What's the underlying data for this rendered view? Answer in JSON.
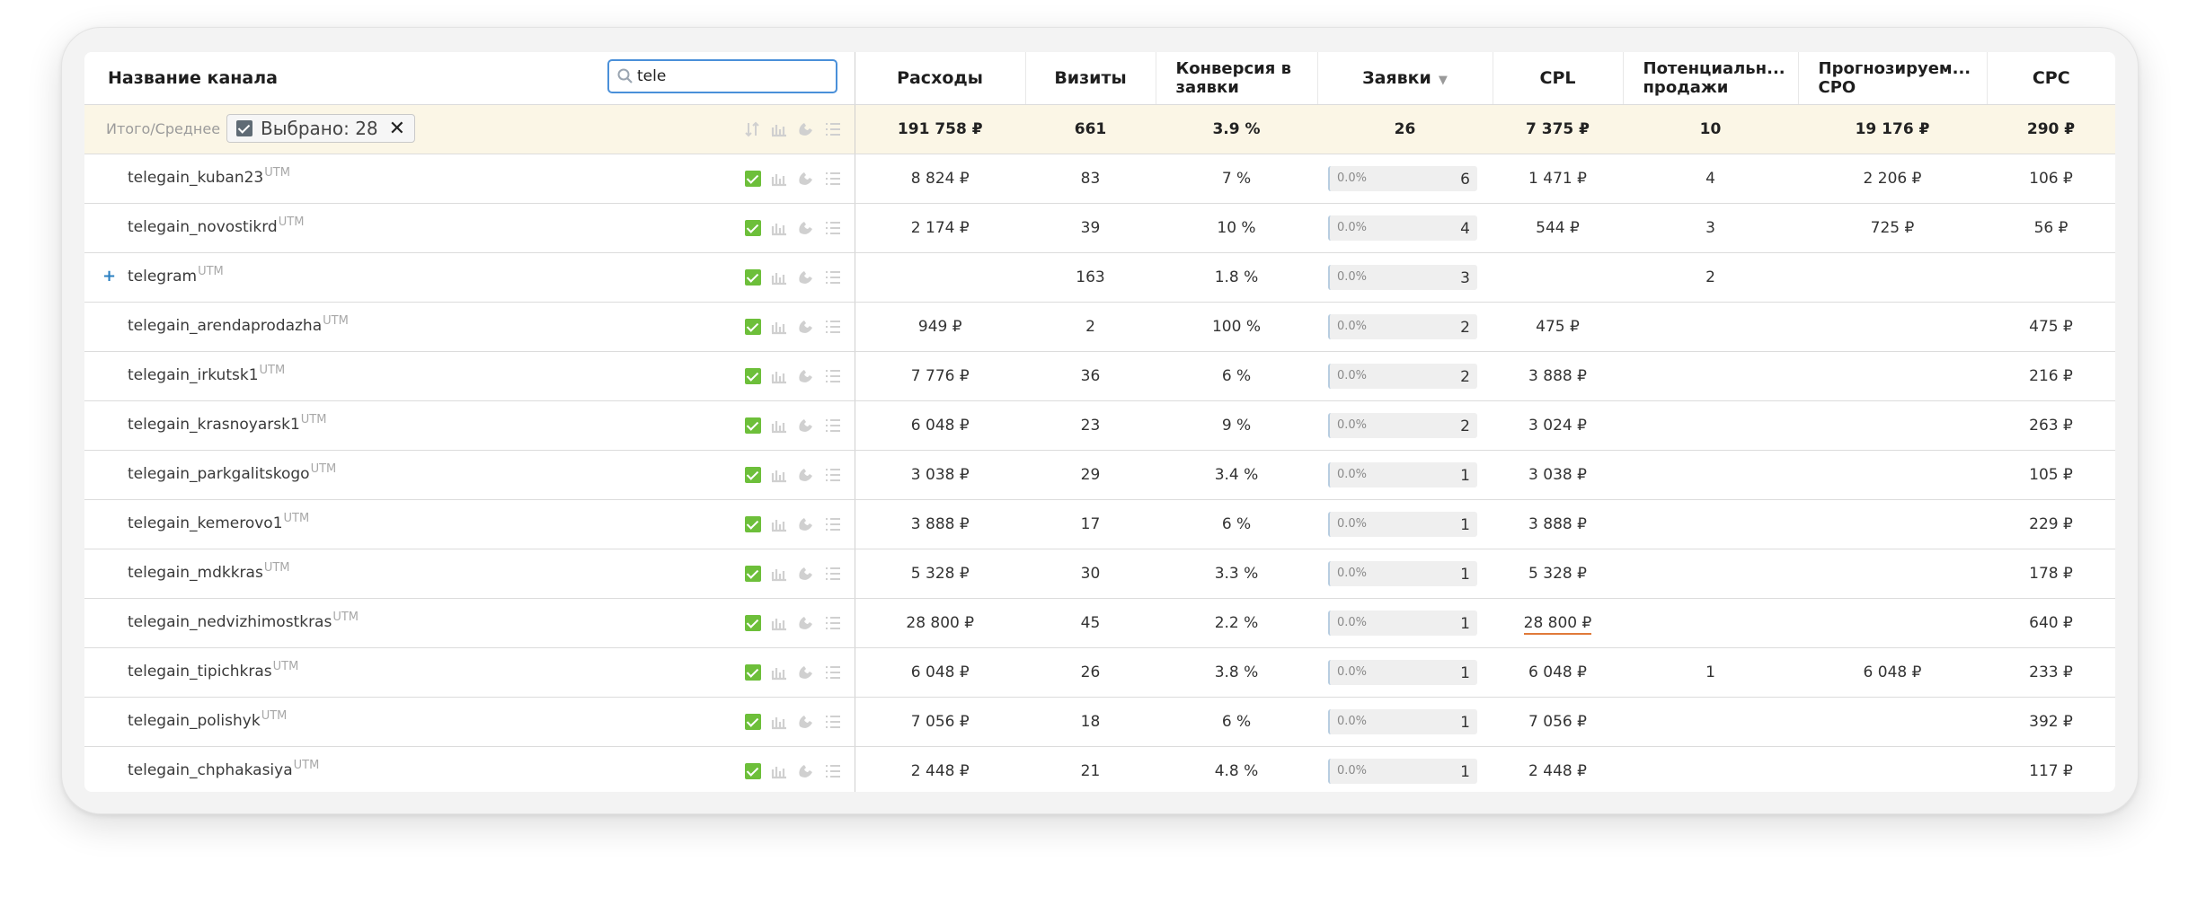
{
  "header": {
    "name_col": "Название канала",
    "search_value": "tele",
    "columns": [
      "Расходы",
      "Визиты",
      "Конверсия в заявки",
      "Заявки",
      "CPL",
      "Потенциальн... продажи",
      "Прогнозируем... CPO",
      "CPC"
    ],
    "columns_multiline": {
      "conv_line1": "Конверсия в",
      "conv_line2": "заявки",
      "pot_line1": "Потенциальн...",
      "pot_line2": "продажи",
      "cpo_line1": "Прогнозируем...",
      "cpo_line2": "CPO"
    },
    "sort_indicator": "▼"
  },
  "total": {
    "label": "Итого/Среднее",
    "selected_chip": "Выбрано: 28",
    "close_symbol": "✕",
    "expenses": "191 758 ₽",
    "visits": "661",
    "conversion": "3.9 %",
    "leads": "26",
    "cpl": "7 375 ₽",
    "potential": "10",
    "cpo": "19 176 ₽",
    "cpc": "290 ₽"
  },
  "utm_label": "UTM",
  "expand_symbol": "+",
  "leads_pct": "0.0%",
  "rows": [
    {
      "name": "telegain_kuban23",
      "expenses": "8 824 ₽",
      "visits": "83",
      "conversion": "7 %",
      "leads": "6",
      "cpl": "1 471 ₽",
      "potential": "4",
      "cpo": "2 206 ₽",
      "cpc": "106 ₽"
    },
    {
      "name": "telegain_novostikrd",
      "expenses": "2 174 ₽",
      "visits": "39",
      "conversion": "10 %",
      "leads": "4",
      "cpl": "544 ₽",
      "potential": "3",
      "cpo": "725 ₽",
      "cpc": "56 ₽"
    },
    {
      "name": "telegram",
      "expenses": "",
      "visits": "163",
      "conversion": "1.8 %",
      "leads": "3",
      "cpl": "",
      "potential": "2",
      "cpo": "",
      "cpc": ""
    },
    {
      "name": "telegain_arendaprodazha",
      "expenses": "949 ₽",
      "visits": "2",
      "conversion": "100 %",
      "leads": "2",
      "cpl": "475 ₽",
      "potential": "",
      "cpo": "",
      "cpc": "475 ₽"
    },
    {
      "name": "telegain_irkutsk1",
      "expenses": "7 776 ₽",
      "visits": "36",
      "conversion": "6 %",
      "leads": "2",
      "cpl": "3 888 ₽",
      "potential": "",
      "cpo": "",
      "cpc": "216 ₽"
    },
    {
      "name": "telegain_krasnoyarsk1",
      "expenses": "6 048 ₽",
      "visits": "23",
      "conversion": "9 %",
      "leads": "2",
      "cpl": "3 024 ₽",
      "potential": "",
      "cpo": "",
      "cpc": "263 ₽"
    },
    {
      "name": "telegain_parkgalitskogo",
      "expenses": "3 038 ₽",
      "visits": "29",
      "conversion": "3.4 %",
      "leads": "1",
      "cpl": "3 038 ₽",
      "potential": "",
      "cpo": "",
      "cpc": "105 ₽"
    },
    {
      "name": "telegain_kemerovo1",
      "expenses": "3 888 ₽",
      "visits": "17",
      "conversion": "6 %",
      "leads": "1",
      "cpl": "3 888 ₽",
      "potential": "",
      "cpo": "",
      "cpc": "229 ₽"
    },
    {
      "name": "telegain_mdkkras",
      "expenses": "5 328 ₽",
      "visits": "30",
      "conversion": "3.3 %",
      "leads": "1",
      "cpl": "5 328 ₽",
      "potential": "",
      "cpo": "",
      "cpc": "178 ₽"
    },
    {
      "name": "telegain_nedvizhimostkras",
      "expenses": "28 800 ₽",
      "visits": "45",
      "conversion": "2.2 %",
      "leads": "1",
      "cpl": "28 800 ₽",
      "potential": "",
      "cpo": "",
      "cpc": "640 ₽"
    },
    {
      "name": "telegain_tipichkras",
      "expenses": "6 048 ₽",
      "visits": "26",
      "conversion": "3.8 %",
      "leads": "1",
      "cpl": "6 048 ₽",
      "potential": "1",
      "cpo": "6 048 ₽",
      "cpc": "233 ₽"
    },
    {
      "name": "telegain_polishyk",
      "expenses": "7 056 ₽",
      "visits": "18",
      "conversion": "6 %",
      "leads": "1",
      "cpl": "7 056 ₽",
      "potential": "",
      "cpo": "",
      "cpc": "392 ₽"
    },
    {
      "name": "telegain_chphakasiya",
      "expenses": "2 448 ₽",
      "visits": "21",
      "conversion": "4.8 %",
      "leads": "1",
      "cpl": "2 448 ₽",
      "potential": "",
      "cpo": "",
      "cpc": "117 ₽"
    }
  ],
  "colors": {
    "accent": "#4a90d9",
    "checkbox": "#6dbf3a",
    "total_bg": "#fbf6e6",
    "warning_underline": "#e07a3a"
  },
  "icons": [
    "checkbox-icon",
    "chart-icon",
    "phone-icon",
    "list-icon",
    "search-icon",
    "sort-icon"
  ]
}
